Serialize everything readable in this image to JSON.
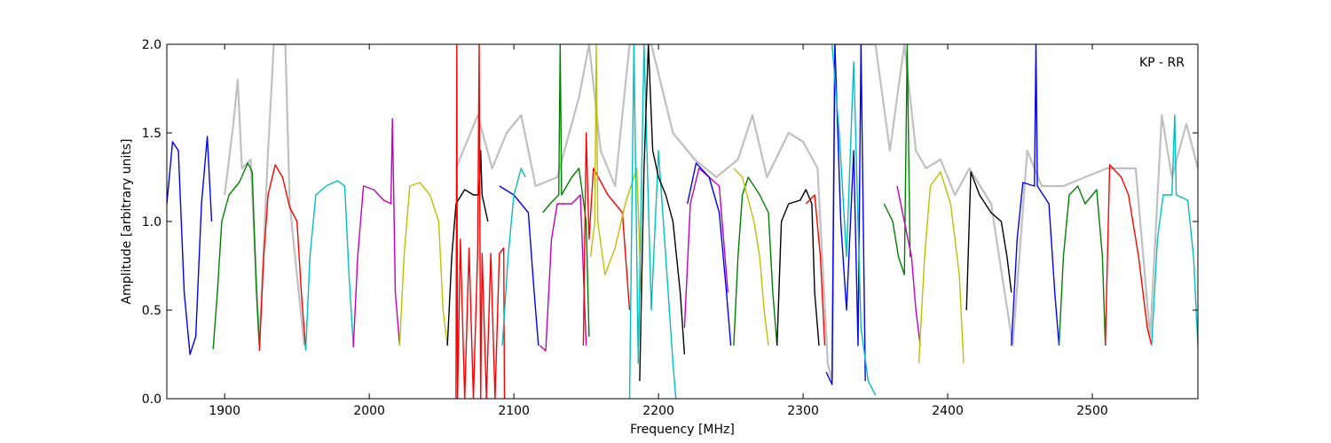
{
  "chart_data": {
    "type": "line",
    "xlabel": "Frequency [MHz]",
    "ylabel": "Amplitude [arbitrary units]",
    "annotation": "KP - RR",
    "xlim": [
      1860,
      2573
    ],
    "ylim": [
      0,
      2
    ],
    "xticks": [
      1900,
      2000,
      2100,
      2200,
      2300,
      2400,
      2500
    ],
    "yticks": [
      {
        "value": 0,
        "label": "0.0"
      },
      0.5,
      {
        "value": 1,
        "label": "1.0"
      },
      1.5,
      {
        "value": 2,
        "label": "2.0"
      }
    ],
    "series": [
      {
        "color": "#c0c0c0",
        "x": [
          1900,
          1906,
          1909,
          1912,
          1918,
          1924,
          1930,
          1934,
          1942,
          1945,
          1955,
          1960,
          2060,
          2075,
          2085,
          2095,
          2105,
          2115,
          2130,
          2145,
          2152,
          2160,
          2170,
          2180,
          2195,
          2210,
          2225,
          2240,
          2255,
          2265,
          2275,
          2290,
          2300,
          2310,
          2317,
          2320,
          2322,
          2350,
          2360,
          2370,
          2378,
          2385,
          2395,
          2405,
          2415,
          2430,
          2445,
          2455,
          2465,
          2480,
          2510,
          2530,
          2540,
          2548,
          2555,
          2565,
          2573
        ],
        "values": [
          1.15,
          1.55,
          1.8,
          1.3,
          1.35,
          0.3,
          1.4,
          2.0,
          2.0,
          1.1,
          0.3,
          null,
          1.3,
          1.6,
          1.3,
          1.5,
          1.6,
          1.2,
          1.25,
          1.7,
          2.0,
          1.4,
          1.2,
          2.0,
          2.0,
          1.5,
          1.35,
          1.25,
          1.35,
          1.6,
          1.25,
          1.5,
          1.45,
          1.3,
          0.2,
          0.1,
          2.0,
          2.0,
          1.4,
          2.0,
          1.4,
          1.3,
          1.35,
          1.15,
          1.3,
          1.1,
          0.3,
          1.4,
          1.2,
          1.2,
          1.3,
          1.3,
          0.35,
          1.6,
          1.25,
          1.55,
          1.3
        ]
      },
      {
        "color": "#0000ff",
        "x": [
          1860,
          1864,
          1868,
          1872,
          1876,
          1880,
          1884,
          1888,
          1891
        ],
        "values": [
          1.1,
          1.45,
          1.4,
          0.6,
          0.25,
          0.35,
          1.1,
          1.48,
          1.0
        ]
      },
      {
        "color": "#008000",
        "x": [
          1892,
          1895,
          1898,
          1903,
          1910,
          1916,
          1919,
          1922,
          1924
        ],
        "values": [
          0.28,
          0.6,
          1.0,
          1.15,
          1.22,
          1.33,
          1.28,
          0.6,
          0.3
        ]
      },
      {
        "color": "#ff0000",
        "x": [
          1924,
          1927,
          1930,
          1935,
          1940,
          1945,
          1950,
          1953,
          1956
        ],
        "values": [
          0.27,
          0.8,
          1.15,
          1.32,
          1.25,
          1.08,
          1.0,
          0.6,
          0.28
        ]
      },
      {
        "color": "#00bfbf",
        "x": [
          1956,
          1959,
          1963,
          1970,
          1978,
          1983,
          1986,
          1989
        ],
        "values": [
          0.27,
          0.8,
          1.15,
          1.2,
          1.23,
          1.2,
          0.7,
          0.3
        ]
      },
      {
        "color": "#bf00bf",
        "x": [
          1989,
          1992,
          1996,
          2003,
          2010,
          2015,
          2016,
          2017,
          2018,
          2021
        ],
        "values": [
          0.29,
          0.8,
          1.2,
          1.18,
          1.12,
          1.1,
          1.58,
          1.1,
          0.6,
          0.3
        ]
      },
      {
        "color": "#bfbf00",
        "x": [
          2021,
          2024,
          2028,
          2035,
          2042,
          2048,
          2051,
          2054
        ],
        "values": [
          0.3,
          0.8,
          1.2,
          1.22,
          1.15,
          1.0,
          0.5,
          0.3
        ]
      },
      {
        "color": "#000000",
        "x": [
          2054,
          2057,
          2060,
          2066,
          2072,
          2076,
          2077,
          2078,
          2082
        ],
        "values": [
          0.3,
          0.8,
          1.1,
          1.18,
          1.15,
          1.15,
          1.4,
          1.15,
          1.0
        ]
      },
      {
        "color": "#ff0000",
        "x": [
          2060,
          2060.5,
          2061,
          2063,
          2066,
          2069,
          2072,
          2075,
          2076,
          2077,
          2078,
          2081,
          2084,
          2087,
          2090,
          2093,
          2093.5
        ],
        "values": [
          0,
          2.0,
          0,
          0.9,
          0,
          0.85,
          0,
          0.85,
          2.0,
          0,
          0.82,
          0,
          0.82,
          0,
          0.82,
          0.85,
          0
        ]
      },
      {
        "color": "#0000ff",
        "x": [
          2090,
          2100,
          2110,
          2114,
          2117
        ],
        "values": [
          1.2,
          1.15,
          1.05,
          0.6,
          0.3
        ]
      },
      {
        "color": "#00bfbf",
        "x": [
          2092,
          2096,
          2100,
          2105,
          2108
        ],
        "values": [
          0.3,
          0.8,
          1.15,
          1.3,
          1.25
        ]
      },
      {
        "color": "#bf00bf",
        "x": [
          2118,
          2122,
          2126,
          2130,
          2140,
          2146,
          2150
        ],
        "values": [
          0.3,
          0.27,
          0.9,
          1.1,
          1.1,
          1.15,
          0.3
        ]
      },
      {
        "color": "#008000",
        "x": [
          2120,
          2125,
          2131,
          2132,
          2133,
          2140,
          2145,
          2150,
          2152
        ],
        "values": [
          1.05,
          1.1,
          1.15,
          2.0,
          1.15,
          1.25,
          1.3,
          1.0,
          0.35
        ]
      },
      {
        "color": "#ff0000",
        "x": [
          2148,
          2150,
          2152,
          2155,
          2165,
          2175,
          2180
        ],
        "values": [
          0.3,
          1.5,
          0.9,
          1.3,
          1.15,
          1.05,
          0.5
        ]
      },
      {
        "color": "#bfbf00",
        "x": [
          2153,
          2156,
          2157,
          2158,
          2163,
          2170,
          2177,
          2185,
          2188
        ],
        "values": [
          0.8,
          1.0,
          2.0,
          1.0,
          0.7,
          0.85,
          1.1,
          1.3,
          0.6
        ]
      },
      {
        "color": "#00bfbf",
        "x": [
          2180,
          2183,
          2186,
          2190,
          2195,
          2200,
          2205,
          2210,
          2212
        ],
        "values": [
          0,
          2.0,
          0.2,
          2.0,
          0.5,
          1.4,
          0.8,
          0.2,
          0
        ]
      },
      {
        "color": "#000000",
        "x": [
          2187,
          2190,
          2193,
          2196,
          2200,
          2205,
          2210,
          2215,
          2218
        ],
        "values": [
          0.1,
          1.3,
          2.0,
          1.4,
          1.25,
          1.15,
          1.0,
          0.6,
          0.25
        ]
      },
      {
        "color": "#bf00bf",
        "x": [
          2218,
          2222,
          2228,
          2235,
          2242,
          2248
        ],
        "values": [
          0.4,
          1.1,
          1.3,
          1.25,
          1.2,
          0.6
        ]
      },
      {
        "color": "#0000ff",
        "x": [
          2220,
          2226,
          2235,
          2242,
          2247,
          2250
        ],
        "values": [
          1.1,
          1.33,
          1.25,
          1.05,
          0.6,
          0.3
        ]
      },
      {
        "color": "#008000",
        "x": [
          2252,
          2255,
          2258,
          2262,
          2270,
          2276,
          2279,
          2282
        ],
        "values": [
          0.3,
          0.8,
          1.15,
          1.25,
          1.15,
          1.05,
          0.6,
          0.3
        ]
      },
      {
        "color": "#bfbf00",
        "x": [
          2252,
          2258,
          2266,
          2270,
          2273,
          2276
        ],
        "values": [
          1.3,
          1.25,
          1.0,
          0.8,
          0.5,
          0.3
        ]
      },
      {
        "color": "#000000",
        "x": [
          2282,
          2285,
          2290,
          2298,
          2302,
          2306,
          2308,
          2311
        ],
        "values": [
          0.3,
          1.0,
          1.1,
          1.12,
          1.18,
          1.1,
          0.6,
          0.3
        ]
      },
      {
        "color": "#ff0000",
        "x": [
          2302,
          2308,
          2312,
          2315
        ],
        "values": [
          1.1,
          1.15,
          0.8,
          0.3
        ]
      },
      {
        "color": "#0000ff",
        "x": [
          2316,
          2320,
          2322,
          2326,
          2330,
          2335,
          2338,
          2340,
          2343
        ],
        "values": [
          0.15,
          0.08,
          2.0,
          1.0,
          0.5,
          1.4,
          0.3,
          2.0,
          0.1
        ]
      },
      {
        "color": "#00bfbf",
        "x": [
          2320,
          2325,
          2330,
          2335,
          2340,
          2345,
          2350
        ],
        "values": [
          2.0,
          1.5,
          0.8,
          1.9,
          0.4,
          0.1,
          0.02
        ]
      },
      {
        "color": "#008000",
        "x": [
          2356,
          2362,
          2366,
          2370,
          2372,
          2374
        ],
        "values": [
          1.1,
          1.0,
          0.8,
          0.7,
          2.0,
          0.8
        ]
      },
      {
        "color": "#bf00bf",
        "x": [
          2365,
          2370,
          2375,
          2378,
          2381
        ],
        "values": [
          1.2,
          1.0,
          0.8,
          0.5,
          0.3
        ]
      },
      {
        "color": "#bfbf00",
        "x": [
          2380,
          2384,
          2388,
          2395,
          2402,
          2408,
          2411
        ],
        "values": [
          0.2,
          0.8,
          1.2,
          1.28,
          1.1,
          0.7,
          0.2
        ]
      },
      {
        "color": "#000000",
        "x": [
          2413,
          2416,
          2422,
          2430,
          2437,
          2441,
          2444
        ],
        "values": [
          0.5,
          1.28,
          1.15,
          1.05,
          1.0,
          0.8,
          0.6
        ]
      },
      {
        "color": "#0000ff",
        "x": [
          2444,
          2448,
          2452,
          2460,
          2461,
          2462,
          2470,
          2474,
          2477
        ],
        "values": [
          0.3,
          0.9,
          1.22,
          1.2,
          2.0,
          1.2,
          1.1,
          0.6,
          0.3
        ]
      },
      {
        "color": "#008000",
        "x": [
          2477,
          2480,
          2484,
          2490,
          2495,
          2503,
          2507,
          2509
        ],
        "values": [
          0.3,
          0.8,
          1.15,
          1.2,
          1.1,
          1.18,
          0.8,
          0.3
        ]
      },
      {
        "color": "#ff0000",
        "x": [
          2509,
          2512,
          2520,
          2525,
          2532,
          2538,
          2541
        ],
        "values": [
          0.3,
          1.32,
          1.25,
          1.15,
          0.8,
          0.4,
          0.3
        ]
      },
      {
        "color": "#00bfbf",
        "x": [
          2541,
          2545,
          2549,
          2555,
          2557,
          2558,
          2566,
          2570,
          2573
        ],
        "values": [
          0.3,
          0.9,
          1.15,
          1.15,
          1.6,
          1.15,
          1.12,
          0.8,
          0.3
        ]
      }
    ]
  }
}
